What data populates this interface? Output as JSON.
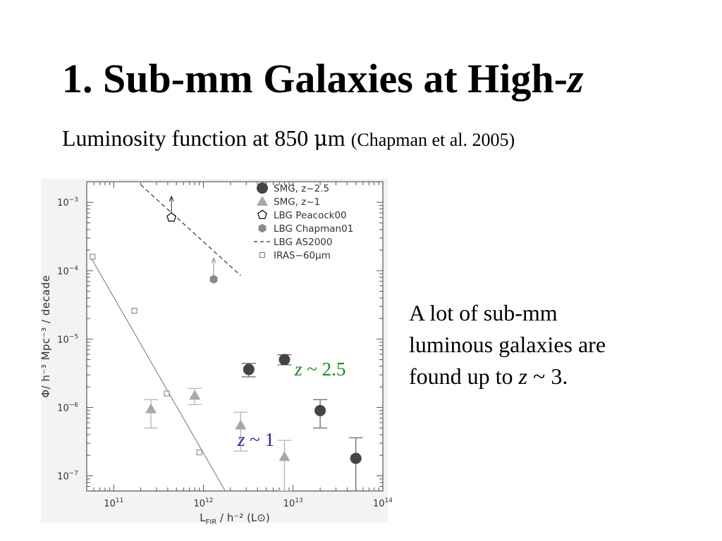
{
  "slide": {
    "title_prefix": "1. Sub-mm Galaxies at High-",
    "title_var": "z",
    "subtitle_main": "Luminosity function at 850 ",
    "subtitle_unit_mu": "μ",
    "subtitle_unit_m": "m ",
    "subtitle_cite": "(Chapman et al. 2005)",
    "note_line1": "A lot of sub-mm",
    "note_line2": "luminous galaxies are",
    "note_line3_prefix": "found up to ",
    "note_line3_var": "z",
    "note_line3_suffix": " ~ 3."
  },
  "chart_data": {
    "type": "scatter",
    "xscale": "log",
    "yscale": "log",
    "xlim": [
      50000000000.0,
      100000000000000.0
    ],
    "ylim": [
      6e-08,
      0.002
    ],
    "xticks": [
      100000000000.0,
      1000000000000.0,
      10000000000000.0,
      100000000000000.0
    ],
    "xticklabels": [
      {
        "base": "10",
        "exp": "11"
      },
      {
        "base": "10",
        "exp": "12"
      },
      {
        "base": "10",
        "exp": "13"
      },
      {
        "base": "10",
        "exp": "14"
      }
    ],
    "yticks": [
      1e-07,
      1e-06,
      1e-05,
      0.0001,
      0.001
    ],
    "yticklabels": [
      {
        "base": "10",
        "exp": "−7"
      },
      {
        "base": "10",
        "exp": "−6"
      },
      {
        "base": "10",
        "exp": "−5"
      },
      {
        "base": "10",
        "exp": "−4"
      },
      {
        "base": "10",
        "exp": "−3"
      }
    ],
    "ylabel": "Φ/ h⁻³ Mpc⁻³ / decade",
    "xlabel": {
      "main": "L",
      "sub": "FIR",
      "rest": " / h⁻² (L",
      "sun": "⊙",
      "close": ")"
    },
    "legend_position": "top-right",
    "series": [
      {
        "name": "SMG, z~2.5",
        "marker": "filled-circle",
        "color": "#444444",
        "points": [
          {
            "x": 3200000000000.0,
            "y": 3.6e-06,
            "ylo": 2.8e-06,
            "yhi": 4.4e-06
          },
          {
            "x": 8000000000000.0,
            "y": 5e-06,
            "ylo": 4.2e-06,
            "yhi": 5.9e-06
          },
          {
            "x": 20000000000000.0,
            "y": 9e-07,
            "ylo": 5e-07,
            "yhi": 1.3e-06
          },
          {
            "x": 50000000000000.0,
            "y": 1.8e-07,
            "ylo": 6e-08,
            "yhi": 3.6e-07
          }
        ]
      },
      {
        "name": "SMG, z~1",
        "marker": "filled-triangle",
        "color": "#a8a8a8",
        "points": [
          {
            "x": 260000000000.0,
            "y": 9.5e-07,
            "ylo": 5e-07,
            "yhi": 1.3e-06
          },
          {
            "x": 800000000000.0,
            "y": 1.5e-06,
            "ylo": 1.1e-06,
            "yhi": 1.9e-06
          },
          {
            "x": 2600000000000.0,
            "y": 5.5e-07,
            "ylo": 2.3e-07,
            "yhi": 8.5e-07
          },
          {
            "x": 8000000000000.0,
            "y": 1.9e-07,
            "ylo": 6e-08,
            "yhi": 3.3e-07
          }
        ]
      },
      {
        "name": "LBG Peacock00",
        "marker": "open-pentagon",
        "color": "#222222",
        "points": [
          {
            "x": 440000000000.0,
            "y": 0.0006,
            "lower_limit": true
          }
        ]
      },
      {
        "name": "LBG Chapman01",
        "marker": "filled-hexagon",
        "color": "#8a8a8a",
        "points": [
          {
            "x": 1300000000000.0,
            "y": 7.5e-05,
            "lower_limit": true
          }
        ]
      },
      {
        "name": "LBG AS2000",
        "marker": "dashed-line",
        "color": "#333333",
        "line": [
          {
            "x": 200000000000.0,
            "y": 0.0018
          },
          {
            "x": 2600000000000.0,
            "y": 8.5e-05
          }
        ]
      },
      {
        "name": "IRAS−60μm",
        "marker": "open-square",
        "color": "#777777",
        "points": [
          {
            "x": 58000000000.0,
            "y": 0.00016
          },
          {
            "x": 170000000000.0,
            "y": 2.6e-05
          },
          {
            "x": 390000000000.0,
            "y": 1.6e-06
          },
          {
            "x": 900000000000.0,
            "y": 2.2e-07
          }
        ],
        "fit_line": [
          {
            "x": 55000000000.0,
            "y": 0.00016
          },
          {
            "x": 1750000000000.0,
            "y": 6e-08
          }
        ]
      }
    ],
    "annotations": [
      {
        "var": "z",
        "text": " ~ 2.5",
        "color": "#1a8a1a",
        "near": "SMG, z~2.5"
      },
      {
        "var": "z",
        "text": " ~ 1",
        "color": "#2323b4",
        "near": "SMG, z~1"
      }
    ]
  }
}
